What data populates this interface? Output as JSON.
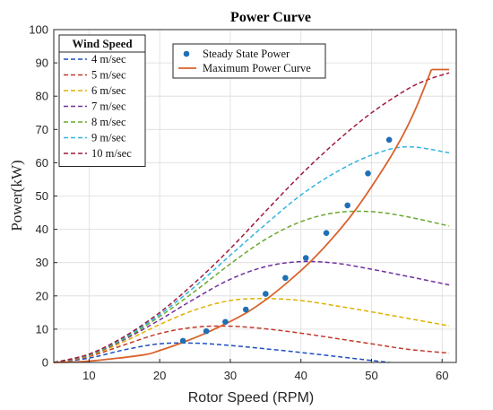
{
  "chart_data": {
    "type": "line",
    "title": "Power Curve",
    "xlabel": "Rotor Speed (RPM)",
    "ylabel": "Power(kW)",
    "xlim": [
      5,
      62
    ],
    "ylim": [
      0,
      100
    ],
    "xticks": [
      10,
      20,
      30,
      40,
      50,
      60
    ],
    "yticks": [
      0,
      10,
      20,
      30,
      40,
      50,
      60,
      70,
      80,
      90,
      100
    ],
    "grid": true,
    "legend_title": "Wind Speed",
    "wind_speed_series": [
      {
        "name": "4 m/sec",
        "color": "#1f4fbf",
        "x": [
          5,
          10,
          15,
          20,
          25,
          30,
          35,
          40,
          45,
          50,
          52.5
        ],
        "y": [
          0,
          1.3,
          3.8,
          5.6,
          5.8,
          5.1,
          4.1,
          3.0,
          1.8,
          0.6,
          0
        ]
      },
      {
        "name": "5 m/sec",
        "color": "#c0392b",
        "x": [
          5,
          10,
          15,
          20,
          25,
          30,
          35,
          40,
          45,
          50,
          55,
          61
        ],
        "y": [
          0,
          1.8,
          5.3,
          8.7,
          10.6,
          10.9,
          10.1,
          8.8,
          7.2,
          5.6,
          4.0,
          2.8
        ]
      },
      {
        "name": "6 m/sec",
        "color": "#e0b000",
        "x": [
          5,
          10,
          15,
          20,
          25,
          30,
          35,
          40,
          45,
          50,
          55,
          61
        ],
        "y": [
          0,
          2.0,
          6.3,
          11.4,
          15.8,
          18.6,
          19.2,
          18.6,
          17.0,
          15.2,
          13.3,
          11.0
        ]
      },
      {
        "name": "7 m/sec",
        "color": "#7030a0",
        "x": [
          5,
          10,
          15,
          20,
          25,
          30,
          35,
          40,
          45,
          50,
          55,
          61
        ],
        "y": [
          0,
          2.2,
          6.9,
          12.8,
          19.2,
          25.0,
          28.8,
          30.3,
          29.8,
          28.0,
          25.9,
          23.3
        ]
      },
      {
        "name": "8 m/sec",
        "color": "#6aa82e",
        "x": [
          5,
          10,
          15,
          20,
          25,
          30,
          35,
          40,
          45,
          50,
          55,
          61
        ],
        "y": [
          0,
          2.3,
          7.2,
          13.8,
          21.4,
          29.6,
          37.0,
          42.3,
          45.0,
          45.3,
          43.8,
          41.0
        ]
      },
      {
        "name": "9 m/sec",
        "color": "#34b4e0",
        "x": [
          5,
          10,
          15,
          20,
          25,
          30,
          35,
          40,
          45,
          50,
          55,
          61
        ],
        "y": [
          0,
          2.4,
          7.5,
          14.4,
          22.8,
          32.2,
          41.5,
          50.3,
          57.2,
          62.3,
          64.8,
          63.0
        ]
      },
      {
        "name": "10 m/sec",
        "color": "#a0193c",
        "x": [
          5,
          10,
          15,
          20,
          25,
          30,
          35,
          40,
          45,
          50,
          55,
          58,
          61
        ],
        "y": [
          0,
          2.5,
          7.8,
          15.0,
          24.0,
          34.2,
          45.4,
          56.4,
          66.3,
          75.0,
          82.0,
          85.0,
          87.0
        ]
      }
    ],
    "steady_state_power": {
      "name": "Steady State Power",
      "color": "#1f6fb5",
      "x": [
        23.3,
        26.6,
        29.3,
        32.2,
        35.0,
        37.8,
        40.7,
        43.6,
        46.6,
        49.5,
        52.5
      ],
      "y": [
        6.5,
        9.4,
        12.2,
        15.9,
        20.6,
        25.4,
        31.4,
        38.9,
        47.2,
        56.8,
        66.9
      ]
    },
    "maximum_power_curve": {
      "name": "Maximum Power Curve",
      "color": "#d9622b",
      "x": [
        5,
        10,
        17.5,
        20,
        23.5,
        26.5,
        29.5,
        32.5,
        35.5,
        38.5,
        41.5,
        44.5,
        47.5,
        50.5,
        53.5,
        56,
        58.5
      ],
      "y": [
        0,
        0.4,
        2.2,
        3.6,
        6.2,
        8.8,
        11.8,
        15.2,
        19.6,
        24.8,
        30.6,
        37.4,
        45.2,
        54.4,
        64.6,
        75.0,
        88.0
      ]
    },
    "max_power_plateau": {
      "x": [
        58.5,
        61
      ],
      "y": [
        88.0,
        88.0
      ]
    },
    "legend_placement": {
      "wind_speed": "top-left",
      "series": "top-center"
    }
  }
}
